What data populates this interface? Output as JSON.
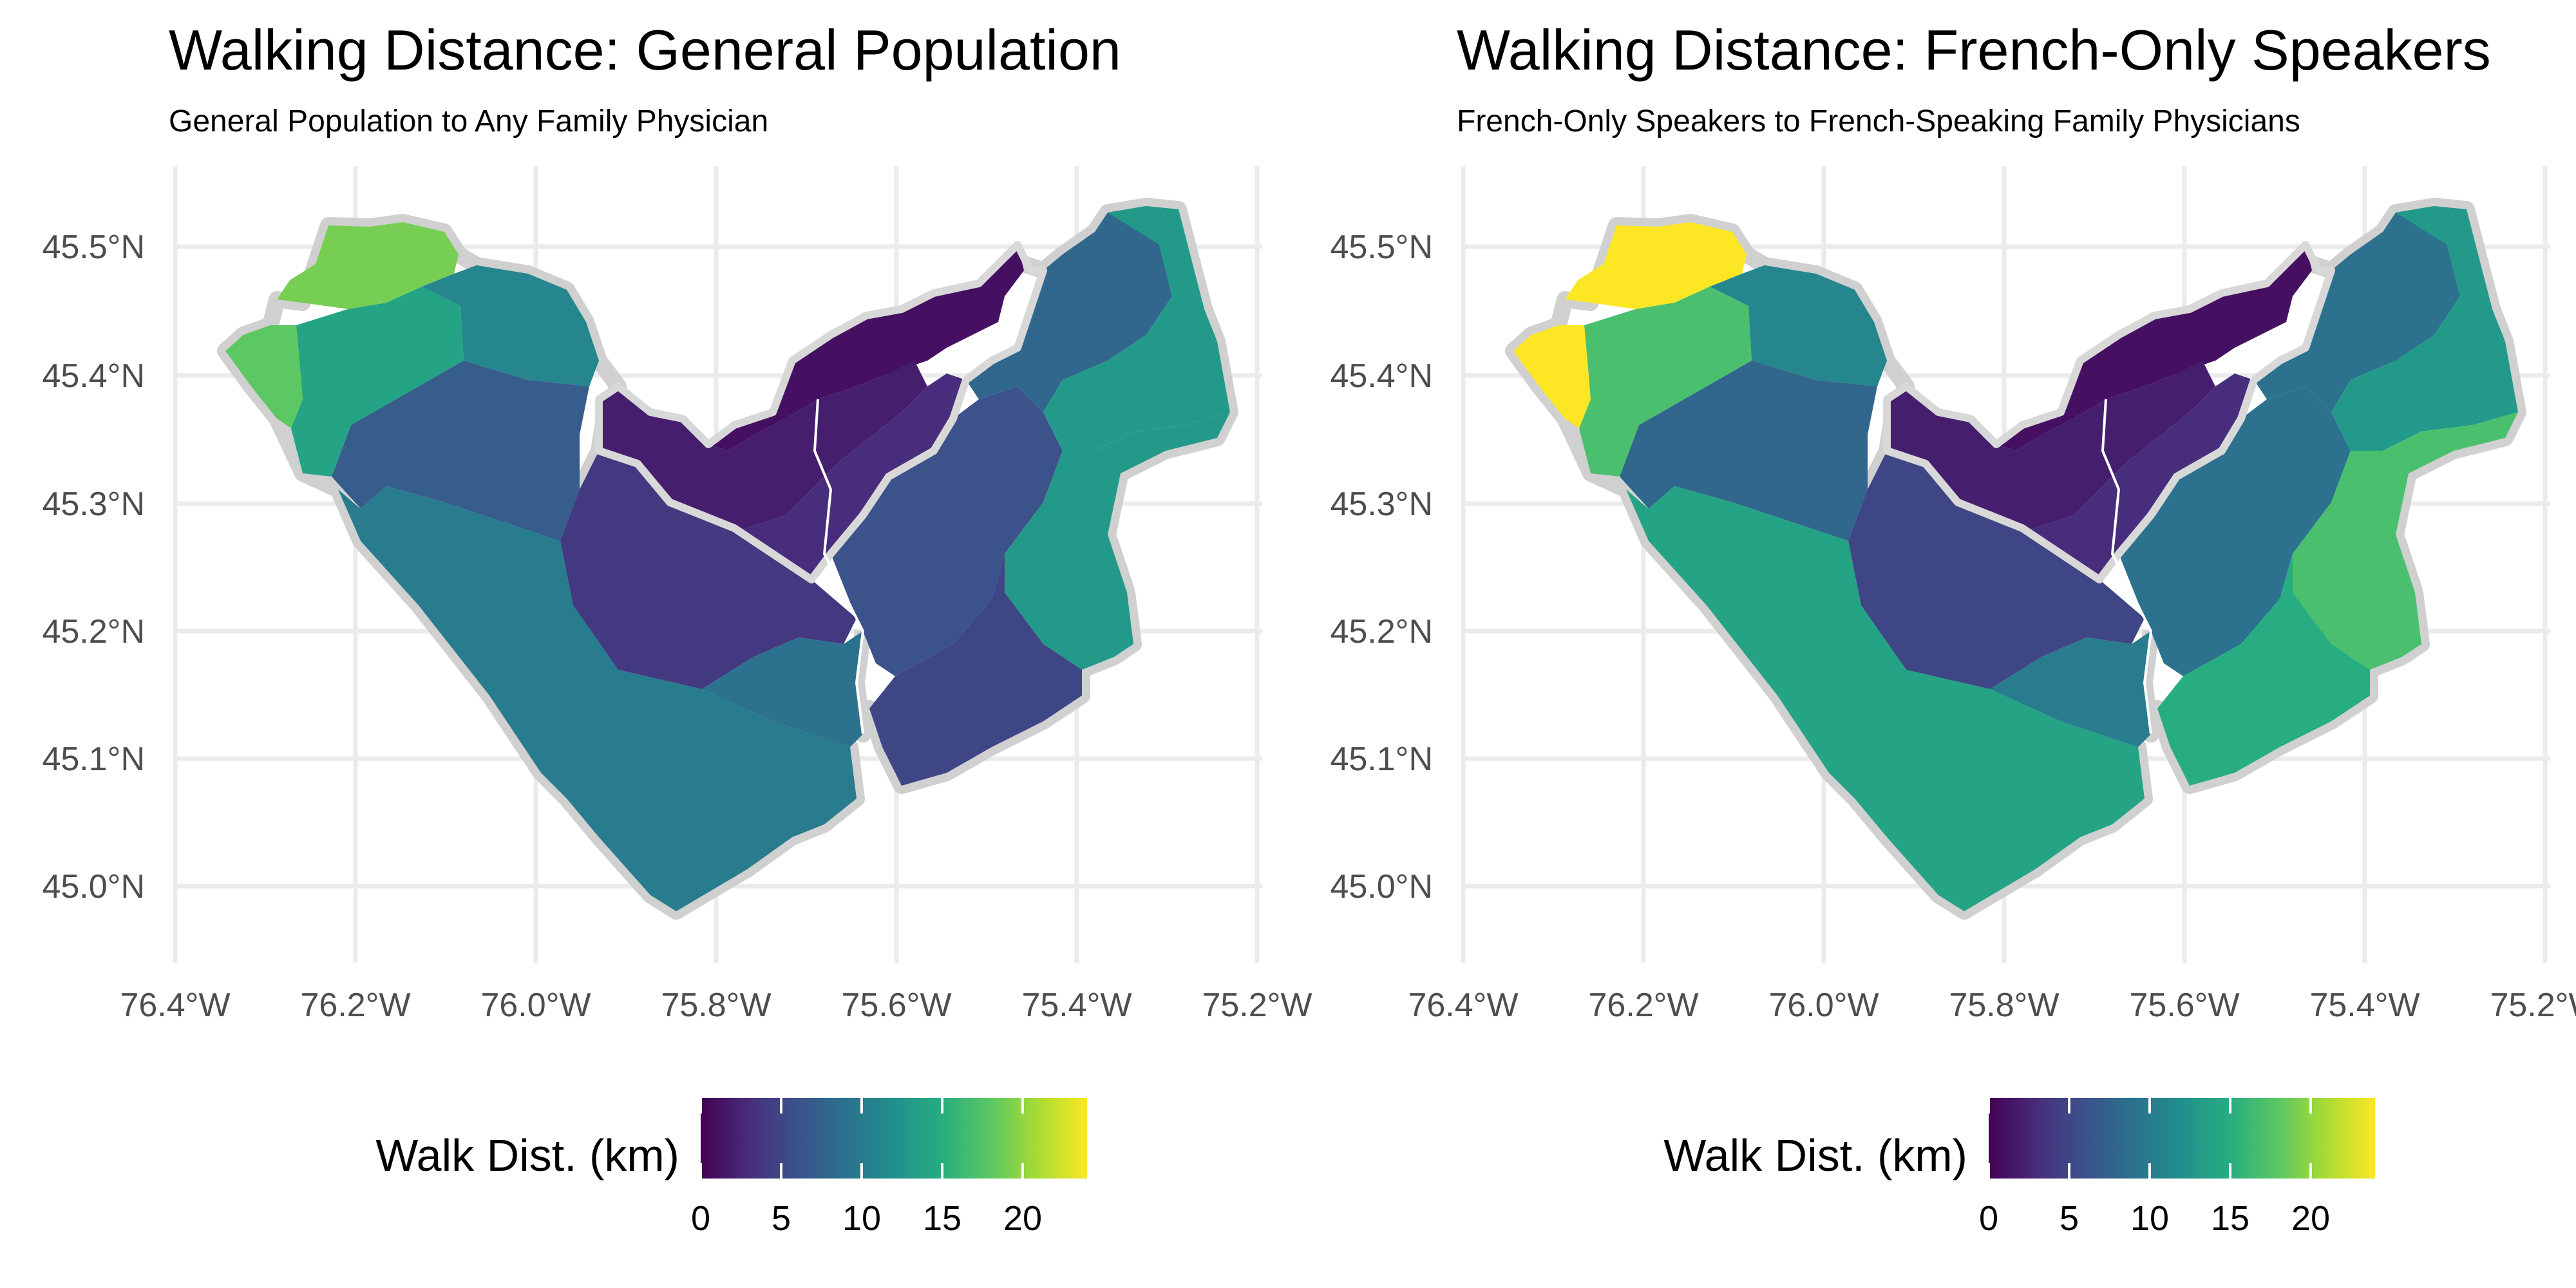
{
  "palette": [
    "#440154",
    "#472d7b",
    "#3b528b",
    "#2c728e",
    "#21908d",
    "#27ad81",
    "#5cc863",
    "#aadc32",
    "#fde725"
  ],
  "outline_color": "#d0d0d0",
  "panels": [
    {
      "title": "Walking Distance: General Population",
      "subtitle": "General Population to Any Family Physician",
      "legend": {
        "title": "Walk Dist. (km)",
        "ticks": [
          0,
          5,
          10,
          15,
          20
        ],
        "range": [
          0,
          24
        ]
      },
      "x_ticks": [
        "76.4°W",
        "76.2°W",
        "76.0°W",
        "75.8°W",
        "75.6°W",
        "75.4°W",
        "75.2°W"
      ],
      "y_ticks": [
        "45.5°N",
        "45.4°N",
        "45.3°N",
        "45.2°N",
        "45.1°N",
        "45.0°N"
      ],
      "regions": {
        "northwest_tip": 19,
        "west_edge": 18,
        "northwest_mid": 14,
        "north_west_central": 11,
        "west_central_strip": 7,
        "southwest": 10,
        "south_central_west": 4,
        "south_central_east": 9,
        "urban_core": 1,
        "urban_west": 2,
        "urban_south": 3,
        "east_central": 6,
        "east_north": 8,
        "far_east": 13,
        "southeast": 13,
        "east_south_strip": 5
      }
    },
    {
      "title": "Walking Distance: French-Only Speakers",
      "subtitle": "French-Only Speakers to French-Speaking Family Physicians",
      "legend": {
        "title": "Walk Dist. (km)",
        "ticks": [
          0,
          5,
          10,
          15,
          20
        ],
        "range": [
          0,
          24
        ]
      },
      "x_ticks": [
        "76.4°W",
        "76.2°W",
        "76.0°W",
        "75.8°W",
        "75.6°W",
        "75.4°W",
        "75.2°W"
      ],
      "y_ticks": [
        "45.5°N",
        "45.4°N",
        "45.3°N",
        "45.2°N",
        "45.1°N",
        "45.0°N"
      ],
      "regions": {
        "northwest_tip": 24,
        "west_edge": 24,
        "northwest_mid": 17,
        "north_west_central": 11,
        "west_central_strip": 8,
        "southwest": 14,
        "south_central_west": 5,
        "south_central_east": 10,
        "urban_core": 1,
        "urban_west": 2,
        "urban_south": 3,
        "east_central": 9,
        "east_north": 9,
        "far_east": 13,
        "southeast": 17,
        "east_south_strip": 15
      }
    }
  ]
}
